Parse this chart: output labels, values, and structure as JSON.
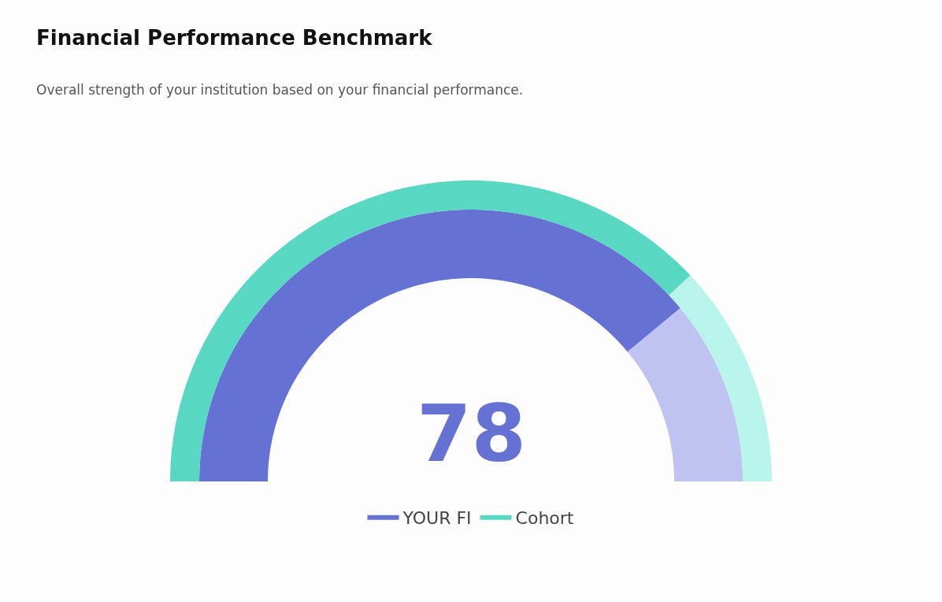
{
  "chart_data": {
    "type": "donut",
    "title": "Financial Performance Benchmark",
    "subtitle": "Overall strength of your institution based on your financial performance.",
    "categories": [
      null,
      null
    ],
    "series": [
      {
        "name": "YOUR FI",
        "values": [
          78,
          22
        ],
        "colors": [
          "#6571d3",
          "#bfc3f2"
        ],
        "value_labels": [
          "78",
          null
        ]
      },
      {
        "name": "Cohort",
        "values": [
          76,
          24
        ],
        "colors": [
          "#58d8c3",
          "#b8f4ea"
        ]
      }
    ],
    "legend": "bottom"
  }
}
